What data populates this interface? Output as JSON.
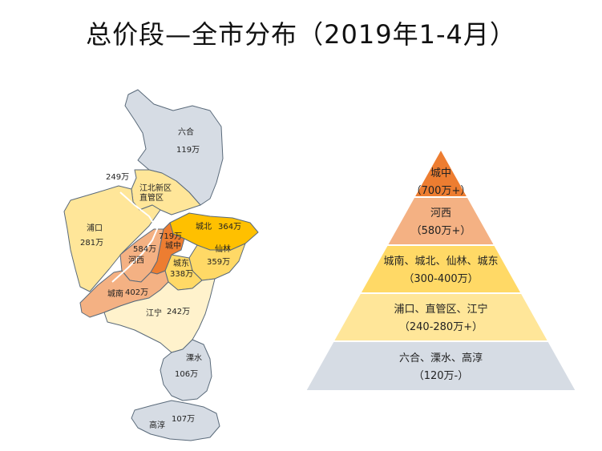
{
  "title": "总价段—全市分布（2019年1-4月）",
  "colors": {
    "low": "#d6dce4",
    "mid_low": "#ffe699",
    "mid": "#ffd966",
    "high": "#f4b183",
    "top": "#ed7d31",
    "border": "#5a6a7a"
  },
  "map": {
    "liuhe": {
      "name": "六合",
      "value": "119万"
    },
    "jiangbei_note": {
      "value": "249万"
    },
    "jiangbei": {
      "name1": "江北新区",
      "name2": "直管区"
    },
    "pukou": {
      "name": "浦口",
      "value": "281万"
    },
    "chengbei": {
      "name": "城北",
      "value": "364万"
    },
    "chengzhong": {
      "name": "城中",
      "value": "719万"
    },
    "hexi": {
      "name": "河西",
      "value": "584万"
    },
    "xianlin": {
      "name": "仙林",
      "value": "359万"
    },
    "chengdong": {
      "name": "城东",
      "value": "338万"
    },
    "chengnan": {
      "name": "城南",
      "value": "402万"
    },
    "jiangning": {
      "name": "江宁",
      "value": "242万"
    },
    "lishui": {
      "name": "溧水",
      "value": "106万"
    },
    "gaochun": {
      "name": "高淳",
      "value": "107万"
    }
  },
  "pyramid": [
    {
      "line1": "城中",
      "line2": "（700万+）",
      "color": "#ed7d31"
    },
    {
      "line1": "河西",
      "line2": "（580万+）",
      "color": "#f4b183"
    },
    {
      "line1": "城南、城北、仙林、城东",
      "line2": "（300-400万）",
      "color": "#ffd966"
    },
    {
      "line1": "浦口、直管区、江宁",
      "line2": "（240-280万+）",
      "color": "#ffe699"
    },
    {
      "line1": "六合、溧水、高淳",
      "line2": "（120万-）",
      "color": "#d6dce4"
    }
  ]
}
